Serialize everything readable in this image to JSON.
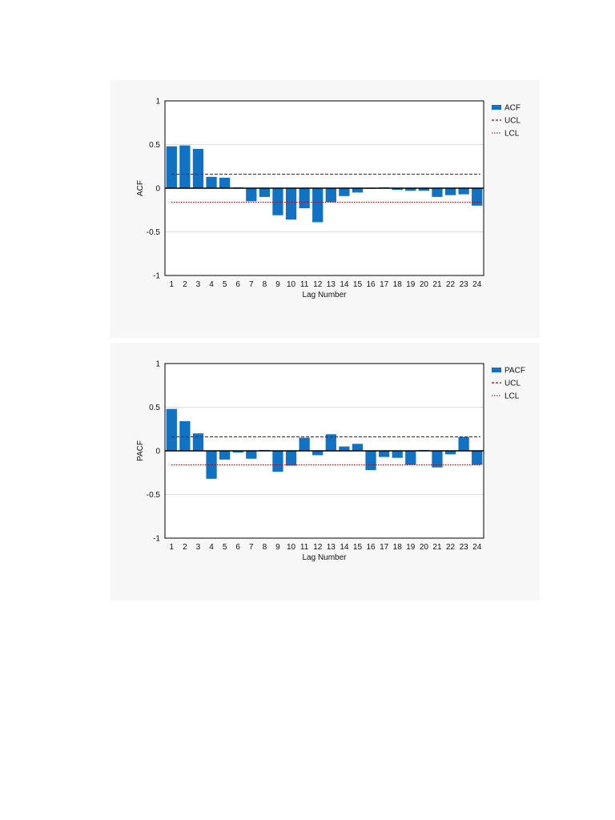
{
  "colors": {
    "bar": "#1172c4",
    "ucl": "#c00000",
    "lcl": "#c00000",
    "grid": "#dddddd",
    "plot_bg": "#ffffff",
    "panel_bg": "#f7f7f7"
  },
  "chart_data": [
    {
      "type": "bar",
      "xlabel": "Lag Number",
      "ylabel": "ACF",
      "ylim": [
        -1,
        1
      ],
      "yticks": [
        "1",
        "0.5",
        "0",
        "-0.5",
        "-1"
      ],
      "categories": [
        "1",
        "2",
        "3",
        "4",
        "5",
        "6",
        "7",
        "8",
        "9",
        "10",
        "11",
        "12",
        "13",
        "14",
        "15",
        "16",
        "17",
        "18",
        "19",
        "20",
        "21",
        "22",
        "23",
        "24"
      ],
      "series": [
        {
          "name": "ACF",
          "values": [
            0.48,
            0.49,
            0.45,
            0.13,
            0.12,
            0.01,
            -0.15,
            -0.1,
            -0.31,
            -0.36,
            -0.23,
            -0.39,
            -0.16,
            -0.09,
            -0.05,
            0.0,
            0.01,
            -0.02,
            -0.03,
            -0.03,
            -0.1,
            -0.08,
            -0.07,
            -0.2
          ]
        }
      ],
      "ucl": 0.16,
      "lcl": -0.16,
      "legend": [
        "ACF",
        "UCL",
        "LCL"
      ],
      "legend_position": "right",
      "grid": true
    },
    {
      "type": "bar",
      "xlabel": "Lag Number",
      "ylabel": "PACF",
      "ylim": [
        -1,
        1
      ],
      "yticks": [
        "1",
        "0.5",
        "0",
        "-0.5",
        "-1"
      ],
      "categories": [
        "1",
        "2",
        "3",
        "4",
        "5",
        "6",
        "7",
        "8",
        "9",
        "10",
        "11",
        "12",
        "13",
        "14",
        "15",
        "16",
        "17",
        "18",
        "19",
        "20",
        "21",
        "22",
        "23",
        "24"
      ],
      "series": [
        {
          "name": "PACF",
          "values": [
            0.48,
            0.34,
            0.2,
            -0.32,
            -0.1,
            -0.02,
            -0.09,
            0.01,
            -0.24,
            -0.17,
            0.15,
            -0.05,
            0.19,
            0.05,
            0.08,
            -0.22,
            -0.07,
            -0.08,
            -0.16,
            0.01,
            -0.19,
            -0.04,
            0.16,
            -0.16
          ]
        }
      ],
      "ucl": 0.16,
      "lcl": -0.16,
      "legend": [
        "PACF",
        "UCL",
        "LCL"
      ],
      "legend_position": "right",
      "grid": true
    }
  ]
}
